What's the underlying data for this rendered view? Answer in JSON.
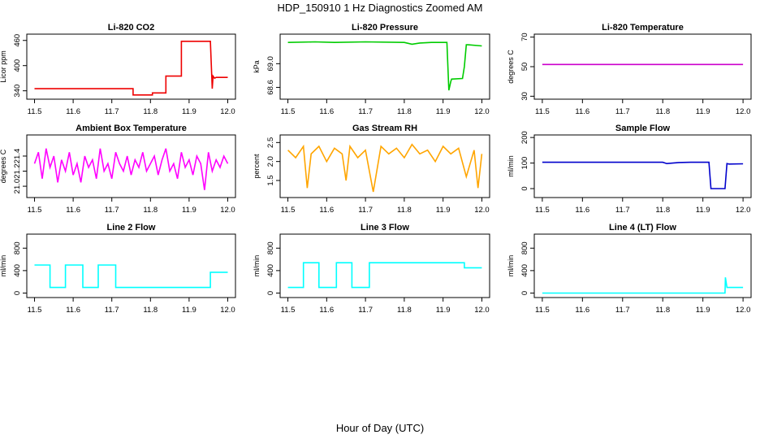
{
  "title": "HDP_150910  1 Hz Diagnostics Zoomed AM",
  "x_axis_title": "Hour of Day (UTC)",
  "chart_data": [
    {
      "type": "line",
      "title": "Li-820 CO2",
      "ylabel": "Licor ppm",
      "color": "#ee0000",
      "xlim": [
        11.48,
        12.02
      ],
      "ylim": [
        320,
        475
      ],
      "xticks": [
        "11.5",
        "11.6",
        "11.7",
        "11.8",
        "11.9",
        "12.0"
      ],
      "yticks": [
        "340",
        "400",
        "460"
      ],
      "series": [
        {
          "x": [
            11.5,
            11.755,
            11.755,
            11.805,
            11.805,
            11.84,
            11.84,
            11.88,
            11.88,
            11.955,
            11.96,
            11.962,
            11.966,
            11.97,
            12.0
          ],
          "y": [
            345,
            345,
            330,
            330,
            335,
            335,
            375,
            375,
            458,
            458,
            345,
            375,
            370,
            372,
            372
          ]
        }
      ]
    },
    {
      "type": "line",
      "title": "Li-820 Pressure",
      "ylabel": "kPa",
      "color": "#00cc00",
      "xlim": [
        11.48,
        12.02
      ],
      "ylim": [
        68.4,
        69.5
      ],
      "xticks": [
        "11.5",
        "11.6",
        "11.7",
        "11.8",
        "11.9",
        "12.0"
      ],
      "yticks": [
        "68.6",
        "69.0"
      ],
      "series": [
        {
          "x": [
            11.5,
            11.57,
            11.62,
            11.7,
            11.8,
            11.82,
            11.84,
            11.87,
            11.91,
            11.915,
            11.92,
            11.922,
            11.95,
            11.955,
            11.96,
            11.965,
            12.0
          ],
          "y": [
            69.36,
            69.37,
            69.36,
            69.37,
            69.36,
            69.33,
            69.35,
            69.36,
            69.36,
            68.55,
            68.7,
            68.74,
            68.75,
            68.95,
            69.32,
            69.32,
            69.3
          ]
        }
      ]
    },
    {
      "type": "line",
      "title": "Li-820 Temperature",
      "ylabel": "degrees C",
      "color": "#cc00cc",
      "xlim": [
        11.48,
        12.02
      ],
      "ylim": [
        28,
        72
      ],
      "xticks": [
        "11.5",
        "11.6",
        "11.7",
        "11.8",
        "11.9",
        "12.0"
      ],
      "yticks": [
        "30",
        "50",
        "70"
      ],
      "series": [
        {
          "x": [
            11.5,
            12.0
          ],
          "y": [
            51.5,
            51.5
          ]
        }
      ]
    },
    {
      "type": "line",
      "title": "Ambient Box Temperature",
      "ylabel": "degrees C",
      "color": "#ff00ff",
      "xlim": [
        11.48,
        12.02
      ],
      "ylim": [
        20.85,
        21.68
      ],
      "xticks": [
        "11.5",
        "11.6",
        "11.7",
        "11.8",
        "11.9",
        "12.0"
      ],
      "yticks": [
        "21.0",
        "21.2",
        "21.4"
      ],
      "series": [
        {
          "x": [
            11.5,
            11.51,
            11.52,
            11.53,
            11.54,
            11.55,
            11.56,
            11.57,
            11.58,
            11.59,
            11.6,
            11.61,
            11.62,
            11.63,
            11.64,
            11.65,
            11.66,
            11.67,
            11.68,
            11.69,
            11.7,
            11.71,
            11.72,
            11.73,
            11.74,
            11.75,
            11.76,
            11.77,
            11.78,
            11.79,
            11.8,
            11.81,
            11.82,
            11.83,
            11.84,
            11.85,
            11.86,
            11.87,
            11.88,
            11.89,
            11.9,
            11.91,
            11.92,
            11.93,
            11.94,
            11.95,
            11.96,
            11.97,
            11.98,
            11.99,
            12.0
          ],
          "y": [
            21.3,
            21.45,
            21.1,
            21.5,
            21.25,
            21.4,
            21.05,
            21.35,
            21.2,
            21.45,
            21.15,
            21.3,
            21.05,
            21.4,
            21.25,
            21.35,
            21.1,
            21.5,
            21.2,
            21.3,
            21.1,
            21.45,
            21.3,
            21.2,
            21.4,
            21.15,
            21.35,
            21.25,
            21.45,
            21.2,
            21.3,
            21.4,
            21.15,
            21.35,
            21.5,
            21.2,
            21.3,
            21.1,
            21.45,
            21.25,
            21.35,
            21.15,
            21.4,
            21.3,
            20.95,
            21.45,
            21.2,
            21.35,
            21.25,
            21.4,
            21.3
          ]
        }
      ]
    },
    {
      "type": "line",
      "title": "Gas Stream RH",
      "ylabel": "percent",
      "color": "#ffa500",
      "xlim": [
        11.48,
        12.02
      ],
      "ylim": [
        1.05,
        2.7
      ],
      "xticks": [
        "11.5",
        "11.6",
        "11.7",
        "11.8",
        "11.9",
        "12.0"
      ],
      "yticks": [
        "1.5",
        "2.0",
        "2.5"
      ],
      "series": [
        {
          "x": [
            11.5,
            11.52,
            11.54,
            11.55,
            11.56,
            11.58,
            11.6,
            11.62,
            11.64,
            11.65,
            11.66,
            11.68,
            11.7,
            11.72,
            11.74,
            11.76,
            11.78,
            11.8,
            11.82,
            11.84,
            11.86,
            11.88,
            11.9,
            11.92,
            11.94,
            11.96,
            11.98,
            11.99,
            12.0
          ],
          "y": [
            2.3,
            2.1,
            2.4,
            1.3,
            2.2,
            2.4,
            2.0,
            2.35,
            2.2,
            1.5,
            2.4,
            2.1,
            2.3,
            1.2,
            2.4,
            2.2,
            2.35,
            2.1,
            2.45,
            2.2,
            2.3,
            2.0,
            2.4,
            2.2,
            2.35,
            1.6,
            2.3,
            1.3,
            2.2
          ]
        }
      ]
    },
    {
      "type": "line",
      "title": "Sample Flow",
      "ylabel": "ml/min",
      "color": "#0000cc",
      "xlim": [
        11.48,
        12.02
      ],
      "ylim": [
        -35,
        210
      ],
      "xticks": [
        "11.5",
        "11.6",
        "11.7",
        "11.8",
        "11.9",
        "12.0"
      ],
      "yticks": [
        "0",
        "100",
        "200"
      ],
      "series": [
        {
          "x": [
            11.5,
            11.8,
            11.81,
            11.84,
            11.87,
            11.915,
            11.92,
            11.955,
            11.96,
            11.965,
            12.0
          ],
          "y": [
            103,
            103,
            98,
            102,
            103,
            103,
            0,
            0,
            98,
            96,
            97
          ]
        }
      ]
    },
    {
      "type": "line",
      "title": "Line 2 Flow",
      "ylabel": "ml/min",
      "color": "#00ffff",
      "xlim": [
        11.48,
        12.02
      ],
      "ylim": [
        -80,
        1050
      ],
      "xticks": [
        "11.5",
        "11.6",
        "11.7",
        "11.8",
        "11.9",
        "12.0"
      ],
      "yticks": [
        "0",
        "400",
        "800"
      ],
      "series": [
        {
          "x": [
            11.5,
            11.54,
            11.54,
            11.58,
            11.58,
            11.625,
            11.625,
            11.665,
            11.665,
            11.71,
            11.71,
            11.955,
            11.955,
            12.0
          ],
          "y": [
            500,
            500,
            100,
            100,
            500,
            500,
            100,
            100,
            500,
            500,
            100,
            100,
            370,
            370
          ]
        }
      ]
    },
    {
      "type": "line",
      "title": "Line 3 Flow",
      "ylabel": "ml/min",
      "color": "#00ffff",
      "xlim": [
        11.48,
        12.02
      ],
      "ylim": [
        -80,
        1050
      ],
      "xticks": [
        "11.5",
        "11.6",
        "11.7",
        "11.8",
        "11.9",
        "12.0"
      ],
      "yticks": [
        "0",
        "400",
        "800"
      ],
      "series": [
        {
          "x": [
            11.5,
            11.54,
            11.54,
            11.58,
            11.58,
            11.625,
            11.625,
            11.665,
            11.665,
            11.71,
            11.71,
            11.955,
            11.955,
            12.0
          ],
          "y": [
            100,
            100,
            540,
            540,
            100,
            100,
            540,
            540,
            100,
            100,
            540,
            540,
            450,
            450
          ]
        }
      ]
    },
    {
      "type": "line",
      "title": "Line 4 (LT) Flow",
      "ylabel": "ml/min",
      "color": "#00ffff",
      "xlim": [
        11.48,
        12.02
      ],
      "ylim": [
        -80,
        1050
      ],
      "xticks": [
        "11.5",
        "11.6",
        "11.7",
        "11.8",
        "11.9",
        "12.0"
      ],
      "yticks": [
        "0",
        "400",
        "800"
      ],
      "series": [
        {
          "x": [
            11.5,
            11.955,
            11.956,
            11.96,
            11.962,
            12.0
          ],
          "y": [
            0,
            0,
            280,
            100,
            100,
            100
          ]
        }
      ]
    }
  ]
}
